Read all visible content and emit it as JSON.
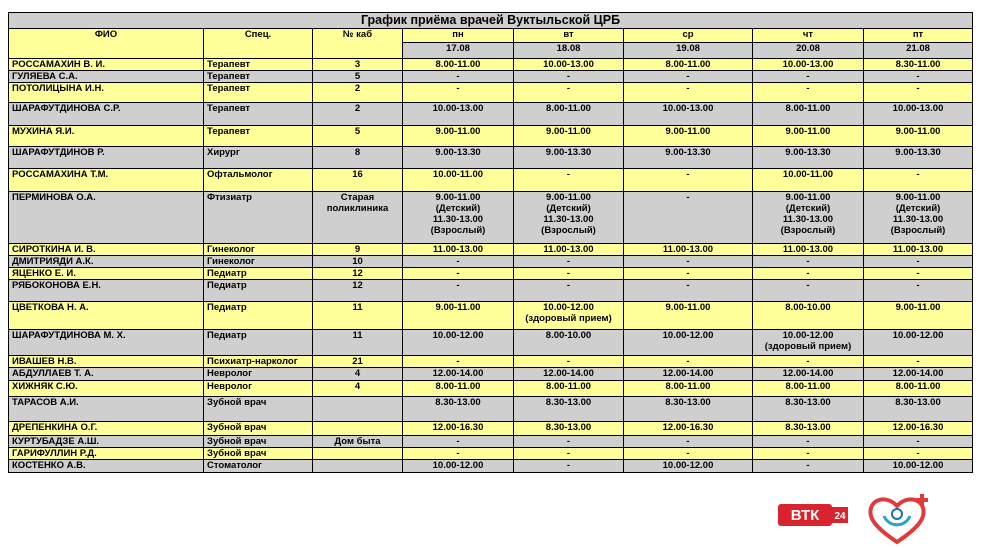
{
  "header": {
    "title": "График приёма врачей Вуктыльской ЦРБ",
    "columns": [
      "ФИО",
      "Спец.",
      "№ каб"
    ],
    "days": [
      "пн",
      "вт",
      "ср",
      "чт",
      "пт"
    ],
    "dates": [
      "17.08",
      "18.08",
      "19.08",
      "20.08",
      "21.08"
    ]
  },
  "table": {
    "rows": [
      [
        "РОССАМАХИН В. И.",
        "Терапевт",
        "3",
        "8.00-11.00",
        "10.00-13.00",
        "8.00-11.00",
        "10.00-13.00",
        "8.30-11.00"
      ],
      [
        "ГУЛЯЕВА С.А.",
        "Терапевт",
        "5",
        "-",
        "-",
        "-",
        "-",
        "-"
      ],
      [
        "ПОТОЛИЦЫНА И.Н.",
        "Терапевт",
        "2",
        "-",
        "-",
        "-",
        "-",
        "-"
      ],
      [
        "ШАРАФУТДИНОВА С.Р.",
        "Терапевт",
        "2",
        "10.00-13.00",
        "8.00-11.00",
        "10.00-13.00",
        "8.00-11.00",
        "10.00-13.00"
      ],
      [
        "МУХИНА Я.И.",
        "Терапевт",
        "5",
        "9.00-11.00",
        "9.00-11.00",
        "9.00-11.00",
        "9.00-11.00",
        "9.00-11.00"
      ],
      [
        "ШАРАФУТДИНОВ Р.",
        "Хирург",
        "8",
        "9.00-13.30",
        "9.00-13.30",
        "9.00-13.30",
        "9.00-13.30",
        "9.00-13.30"
      ],
      [
        "РОССАМАХИНА Т.М.",
        "Офтальмолог",
        "16",
        "10.00-11.00",
        "-",
        "-",
        "10.00-11.00",
        "-"
      ],
      [
        "ПЕРМИНОВА О.А.",
        "Фтизиатр",
        "Старая\nполиклиника",
        "9.00-11.00\n(Детский)\n11.30-13.00\n(Взрослый)",
        "9.00-11.00\n(Детский)\n11.30-13.00\n(Взрослый)",
        "-",
        "9.00-11.00\n(Детский)\n11.30-13.00\n(Взрослый)",
        "9.00-11.00\n(Детский)\n11.30-13.00\n(Взрослый)"
      ],
      [
        "СИРОТКИНА И. В.",
        "Гинеколог",
        "9",
        "11.00-13.00",
        "11.00-13.00",
        "11.00-13.00",
        "11.00-13.00",
        "11.00-13.00"
      ],
      [
        "ДМИТРИЯДИ А.К.",
        "Гинеколог",
        "10",
        "-",
        "-",
        "-",
        "-",
        "-"
      ],
      [
        "ЯЦЕНКО Е. И.",
        "Педиатр",
        "12",
        "-",
        "-",
        "-",
        "-",
        "-"
      ],
      [
        "РЯБОКОНОВА Е.Н.",
        "Педиатр",
        "12",
        "-",
        "-",
        "-",
        "-",
        "-"
      ],
      [
        "ЦВЕТКОВА Н. А.",
        "Педиатр",
        "11",
        "9.00-11.00",
        "10.00-12.00\n(здоровый прием)",
        "9.00-11.00",
        "8.00-10.00",
        "9.00-11.00"
      ],
      [
        "ШАРАФУТДИНОВА М. Х.",
        "Педиатр",
        "11",
        "10.00-12.00",
        "8.00-10.00",
        "10.00-12.00",
        "10.00-12.00\n(здоровый прием)",
        "10.00-12.00"
      ],
      [
        "ИВАШЕВ Н.В.",
        "Психиатр-нарколог",
        "21",
        "-",
        "-",
        "-",
        "-",
        "-"
      ],
      [
        "АБДУЛЛАЕВ Т. А.",
        "Невролог",
        "4",
        "12.00-14.00",
        "12.00-14.00",
        "12.00-14.00",
        "12.00-14.00",
        "12.00-14.00"
      ],
      [
        "ХИЖНЯК С.Ю.",
        "Невролог",
        "4",
        "8.00-11.00",
        "8.00-11.00",
        "8.00-11.00",
        "8.00-11.00",
        "8.00-11.00"
      ],
      [
        "ТАРАСОВ А.И.",
        "Зубной врач",
        null,
        "8.30-13.00",
        "8.30-13.00",
        "8.30-13.00",
        "8.30-13.00",
        "8.30-13.00"
      ],
      [
        "ДРЕПЕНКИНА О.Г.",
        "Зубной врач",
        null,
        "12.00-16.30",
        "8.30-13.00",
        "12.00-16.30",
        "8.30-13.00",
        "12.00-16.30"
      ],
      [
        "КУРТУБАДЗЕ А.Ш.",
        "Зубной врач",
        "Дом быта",
        "-",
        "-",
        "-",
        "-",
        "-"
      ],
      [
        "ГАРИФУЛЛИН Р.Д.",
        "Зубной врач",
        null,
        "-",
        "-",
        "-",
        "-",
        "-"
      ],
      [
        "КОСТЕНКО А.В.",
        "Стоматолог",
        null,
        "10.00-12.00",
        "-",
        "10.00-12.00",
        "-",
        "10.00-12.00"
      ]
    ]
  },
  "logo": {
    "text": "ВТК",
    "badge": "24"
  }
}
